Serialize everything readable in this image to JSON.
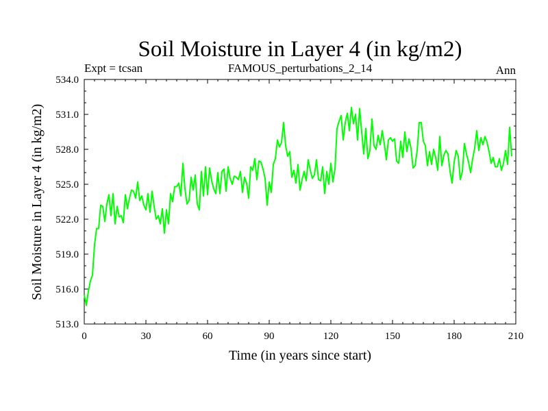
{
  "chart_data": {
    "type": "line",
    "title": "Soil Moisture in Layer 4 (in kg/m2)",
    "subtitle_left": "Expt = tcsan",
    "subtitle_center": "FAMOUS_perturbations_2_14",
    "subtitle_right": "Ann",
    "xlabel": "Time (in years since start)",
    "ylabel": "Soil Moisture in Layer 4 (in kg/m2)",
    "xlim": [
      0,
      210
    ],
    "ylim": [
      513.0,
      534.0
    ],
    "xticks": [
      0,
      30,
      60,
      90,
      120,
      150,
      180,
      210
    ],
    "yticks": [
      "513.0",
      "516.0",
      "519.0",
      "522.0",
      "525.0",
      "528.0",
      "531.0",
      "534.0"
    ],
    "line_color": "#00ff00",
    "series": [
      {
        "name": "tcsan",
        "x_start": 0,
        "x_step": 1,
        "values": [
          515.5,
          514.6,
          515.8,
          516.7,
          517.2,
          519.8,
          521.2,
          521.2,
          523.2,
          523.1,
          521.8,
          523.3,
          524.1,
          522.3,
          524.2,
          521.6,
          523.1,
          522.2,
          522.3,
          521.7,
          524.1,
          522.9,
          523.8,
          524.5,
          524.4,
          523.8,
          525.2,
          523.6,
          524.0,
          523.2,
          522.8,
          524.2,
          522.6,
          524.4,
          523.1,
          522.0,
          522.3,
          521.6,
          522.9,
          520.8,
          522.8,
          521.6,
          524.2,
          523.5,
          524.8,
          524.8,
          525.1,
          524.0,
          526.8,
          524.6,
          523.3,
          523.6,
          525.6,
          524.5,
          525.8,
          523.3,
          522.8,
          526.1,
          524.0,
          526.5,
          524.1,
          526.4,
          525.3,
          524.6,
          524.2,
          526.0,
          524.2,
          526.1,
          526.3,
          524.4,
          526.5,
          525.5,
          525.0,
          525.7,
          525.6,
          525.4,
          526.1,
          524.3,
          525.6,
          525.1,
          523.8,
          526.5,
          526.2,
          527.2,
          525.4,
          527.0,
          526.9,
          526.3,
          525.5,
          523.2,
          525.2,
          524.3,
          526.7,
          527.2,
          528.8,
          528.2,
          528.6,
          530.3,
          528.3,
          527.4,
          527.8,
          525.6,
          526.2,
          525.1,
          526.7,
          524.5,
          525.4,
          526.1,
          525.3,
          527.1,
          526.2,
          525.5,
          525.8,
          527.1,
          525.4,
          525.3,
          526.5,
          524.2,
          526.1,
          525.0,
          526.8,
          525.2,
          526.3,
          529.8,
          530.4,
          530.9,
          528.8,
          530.3,
          531.1,
          529.6,
          531.6,
          530.2,
          531.0,
          528.8,
          531.5,
          529.5,
          527.6,
          529.8,
          527.2,
          527.9,
          530.6,
          528.3,
          528.0,
          529.2,
          528.4,
          529.6,
          528.5,
          527.1,
          528.8,
          529.0,
          528.7,
          528.9,
          527.0,
          526.8,
          528.7,
          527.3,
          529.5,
          527.8,
          528.9,
          528.1,
          526.4,
          526.6,
          527.9,
          530.3,
          530.3,
          528.7,
          528.3,
          526.6,
          527.8,
          526.7,
          528.0,
          527.3,
          526.2,
          529.1,
          526.6,
          527.5,
          527.9,
          527.6,
          526.1,
          525.1,
          526.9,
          527.9,
          527.4,
          525.4,
          526.1,
          528.5,
          527.6,
          526.9,
          526.0,
          527.2,
          528.1,
          529.6,
          527.9,
          529.0,
          528.4,
          529.1,
          528.6,
          527.8,
          526.8,
          527.3,
          526.5,
          526.5,
          527.2,
          526.2,
          526.8,
          527.9,
          526.7,
          529.9,
          527.4
        ]
      }
    ]
  }
}
